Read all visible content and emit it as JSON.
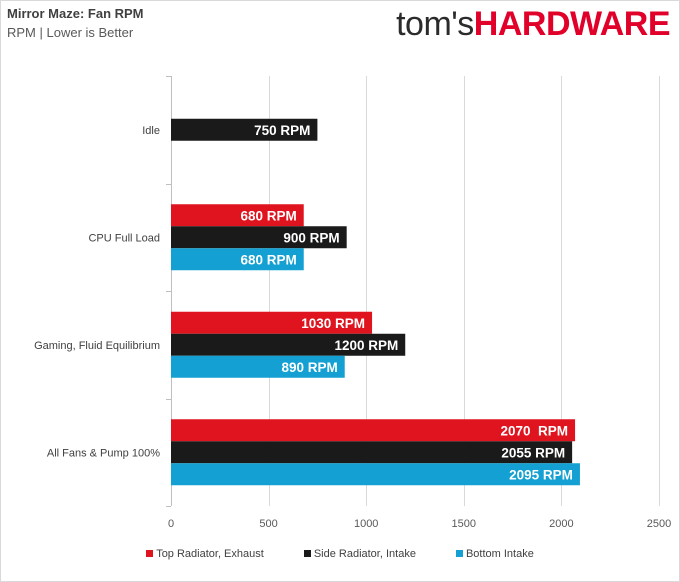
{
  "header": {
    "title": "Mirror Maze: Fan RPM",
    "subtitle": "RPM | Lower is Better",
    "logo_part1": "tom's",
    "logo_part2": "HARDWARE"
  },
  "chart_data": {
    "type": "bar",
    "orientation": "horizontal",
    "title": "Mirror Maze: Fan RPM",
    "subtitle": "RPM | Lower is Better",
    "categories": [
      "Idle",
      "CPU Full Load",
      "Gaming, Fluid Equilibrium",
      "All Fans & Pump 100%"
    ],
    "series": [
      {
        "name": "Top Radiator, Exhaust",
        "color": "#e0141e",
        "values": [
          null,
          680,
          1030,
          2070
        ],
        "labels": [
          "",
          "680 RPM",
          "1030 RPM",
          "2070  RPM"
        ]
      },
      {
        "name": "Side Radiator, Intake",
        "color": "#1a1a1a",
        "values": [
          750,
          900,
          1200,
          2055
        ],
        "labels": [
          "750 RPM",
          "900 RPM",
          "1200 RPM",
          "2055 RPM"
        ]
      },
      {
        "name": "Bottom Intake",
        "color": "#14a0d2",
        "values": [
          null,
          680,
          890,
          2095
        ],
        "labels": [
          "",
          "680 RPM",
          "890 RPM",
          "2095 RPM"
        ]
      }
    ],
    "xlim": [
      0,
      2500
    ],
    "xticks": [
      0,
      500,
      1000,
      1500,
      2000,
      2500
    ],
    "xtick_labels": [
      "0",
      "500",
      "1000",
      "1500",
      "2000",
      "2500"
    ],
    "grid": true,
    "legend": "bottom"
  }
}
